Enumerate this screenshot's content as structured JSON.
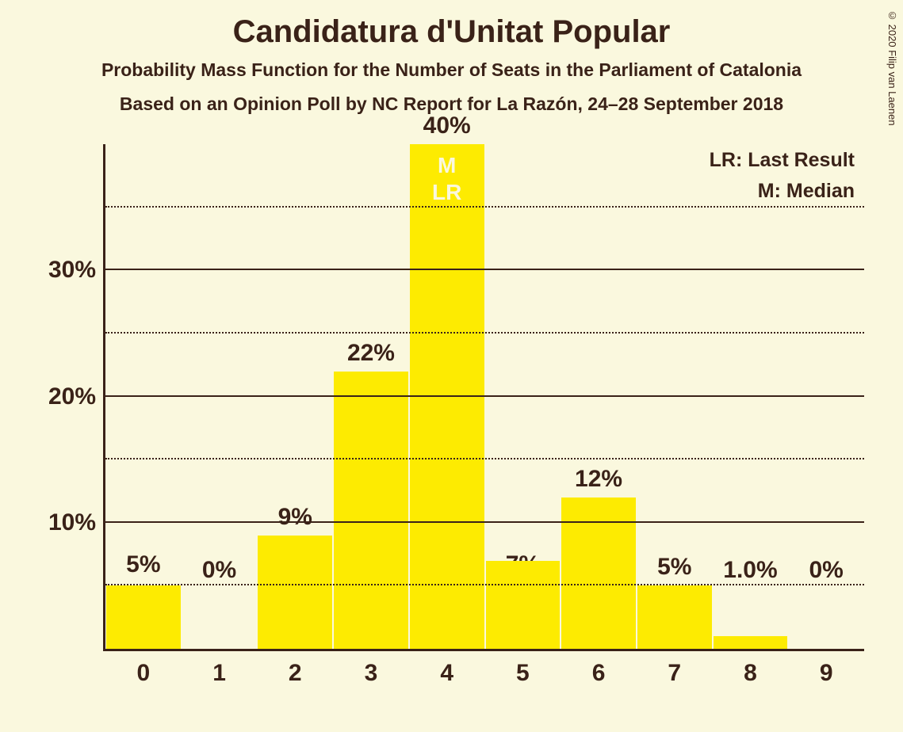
{
  "copyright": "© 2020 Filip van Laenen",
  "title": "Candidatura d'Unitat Popular",
  "subtitle1": "Probability Mass Function for the Number of Seats in the Parliament of Catalonia",
  "subtitle2": "Based on an Opinion Poll by NC Report for La Razón, 24–28 September 2018",
  "legend": {
    "lr": "LR: Last Result",
    "m": "M: Median"
  },
  "chart": {
    "type": "bar",
    "background_color": "#faf8de",
    "bar_color": "#fdeb01",
    "axis_color": "#3a2218",
    "text_color": "#3a2218",
    "inner_text_color": "#faf8de",
    "ymax": 40,
    "major_ticks": [
      10,
      20,
      30
    ],
    "minor_ticks": [
      5,
      15,
      25,
      35
    ],
    "ytick_suffix": "%",
    "categories": [
      "0",
      "1",
      "2",
      "3",
      "4",
      "5",
      "6",
      "7",
      "8",
      "9"
    ],
    "values": [
      5,
      0,
      9,
      22,
      40,
      7,
      12,
      5,
      1.0,
      0
    ],
    "value_labels": [
      "5%",
      "0%",
      "9%",
      "22%",
      "40%",
      "7%",
      "12%",
      "5%",
      "1.0%",
      "0%"
    ],
    "label_offsets_pct": [
      13,
      12,
      0,
      0,
      0,
      13,
      0,
      0,
      12,
      12
    ],
    "median_index": 4,
    "median_text": "M",
    "lr_index": 4,
    "lr_text": "LR",
    "title_fontsize": 40,
    "subtitle_fontsize": 23,
    "tick_fontsize": 30,
    "legend_fontsize": 25
  }
}
